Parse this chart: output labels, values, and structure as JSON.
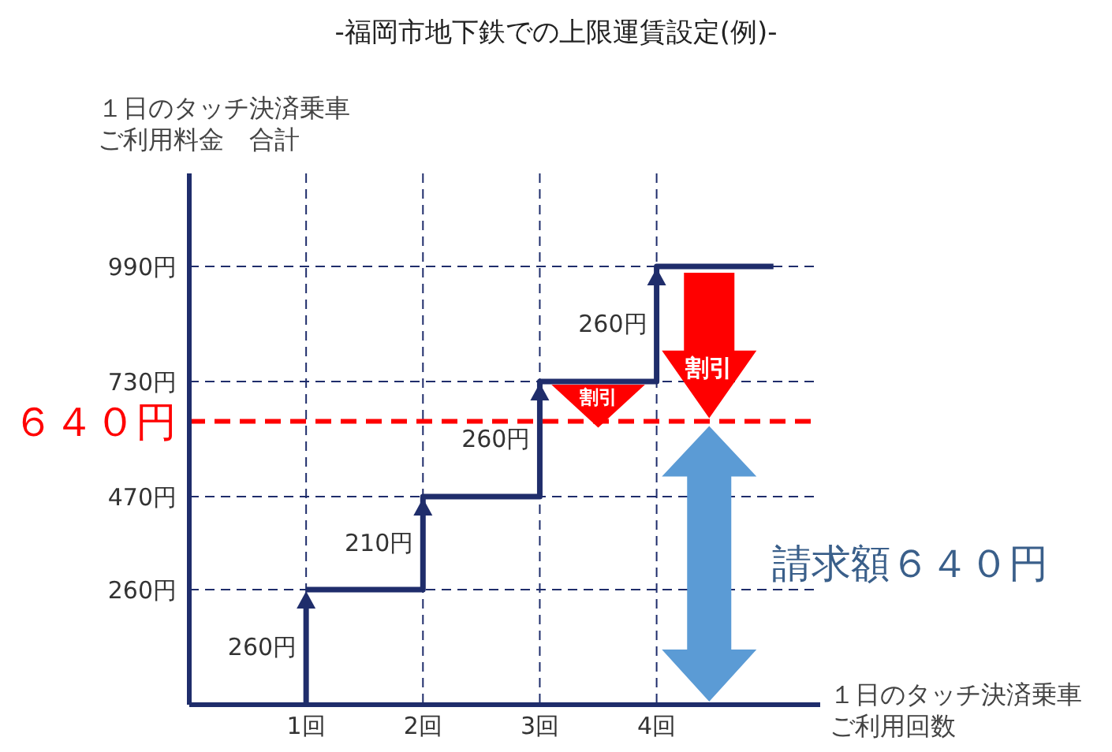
{
  "chart_data": {
    "type": "step",
    "title": "-福岡市地下鉄での上限運賃設定(例)-",
    "ylabel": "１日のタッチ決済乗車ご利用料金　合計",
    "xlabel": "１日のタッチ決済乗車ご利用回数",
    "categories": [
      "1回",
      "2回",
      "3回",
      "4回",
      null
    ],
    "series": [
      {
        "color": "#1f2d6b",
        "values": [
          260,
          470,
          730,
          990,
          990
        ]
      }
    ],
    "ylim": [
      0,
      1200
    ],
    "yticks": [
      {
        "value": 260,
        "label": "260円"
      },
      {
        "value": 470,
        "label": "470円"
      },
      {
        "value": 730,
        "label": "730円"
      },
      {
        "value": 990,
        "label": "990円"
      }
    ],
    "grid": true,
    "ref_lines": [
      {
        "axis": "y",
        "value": 640,
        "label": "６４０円",
        "color": "#ff0000",
        "line_style": "dashed"
      }
    ],
    "annotations": [
      "260円",
      {
        "text": "210円",
        "x": "2回",
        "y": 365
      },
      {
        "text": "260円",
        "x": "3回",
        "y": 600
      },
      {
        "text": "260円",
        "x": "4回",
        "y": 860
      },
      "割引",
      "割引",
      "請求額６４０円"
    ]
  }
}
